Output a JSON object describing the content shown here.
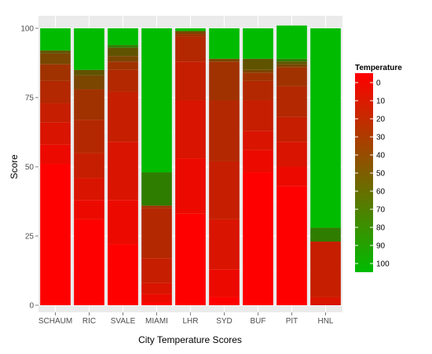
{
  "chart_data": {
    "type": "bar",
    "stacked": true,
    "title": "",
    "xlabel": "City Temperature Scores",
    "ylabel": "Score",
    "ylim": [
      0,
      100
    ],
    "y_ticks": [
      0,
      25,
      50,
      75,
      100
    ],
    "grid": true,
    "legend_position": "right",
    "categories": [
      "SCHAUM",
      "RIC",
      "SVALE",
      "MIAMI",
      "LHR",
      "SYD",
      "BUF",
      "PIT",
      "HNL"
    ],
    "series": [
      {
        "name": "0",
        "color": "#ff0000",
        "values": [
          51,
          31,
          22,
          1,
          33,
          3,
          48,
          43,
          0
        ]
      },
      {
        "name": "10",
        "color": "#ec0a00",
        "values": [
          7,
          7,
          16,
          3,
          20,
          10,
          8,
          7,
          0
        ]
      },
      {
        "name": "20",
        "color": "#d91400",
        "values": [
          8,
          8,
          21,
          4,
          21,
          18,
          7,
          9,
          3
        ]
      },
      {
        "name": "30",
        "color": "#c61e00",
        "values": [
          7,
          9,
          18,
          9,
          14,
          21,
          11,
          9,
          20
        ]
      },
      {
        "name": "40",
        "color": "#b32800",
        "values": [
          8,
          12,
          8,
          18,
          9,
          22,
          7,
          11,
          0
        ]
      },
      {
        "name": "50",
        "color": "#a03200",
        "values": [
          6,
          11,
          3,
          1,
          1,
          14,
          3,
          7,
          0
        ]
      },
      {
        "name": "60",
        "color": "#7a4600",
        "values": [
          4,
          5,
          2,
          0,
          1,
          1,
          1,
          1,
          0
        ]
      },
      {
        "name": "70",
        "color": "#5f5300",
        "values": [
          1,
          2,
          3,
          0,
          0,
          0,
          4,
          1,
          0
        ]
      },
      {
        "name": "80",
        "color": "#2f7d00",
        "values": [
          0,
          0,
          1,
          12,
          0,
          0,
          0,
          1,
          5
        ]
      },
      {
        "name": "90",
        "color": "#17a300",
        "values": [
          0,
          0,
          0,
          0,
          0,
          0,
          0,
          0,
          0
        ]
      },
      {
        "name": "100",
        "color": "#00bb00",
        "values": [
          8,
          15,
          6,
          52,
          1,
          11,
          11,
          12,
          72
        ]
      }
    ],
    "legend": {
      "title": "Temperature",
      "labels": [
        "0",
        "10",
        "20",
        "30",
        "40",
        "50",
        "60",
        "70",
        "80",
        "90",
        "100"
      ],
      "gradient_from": "#ff0000",
      "gradient_to": "#00bb00"
    },
    "colors": {
      "panel_background": "#ebebeb",
      "grid_major": "#ffffff",
      "grid_minor": "#f5f5f5"
    }
  }
}
